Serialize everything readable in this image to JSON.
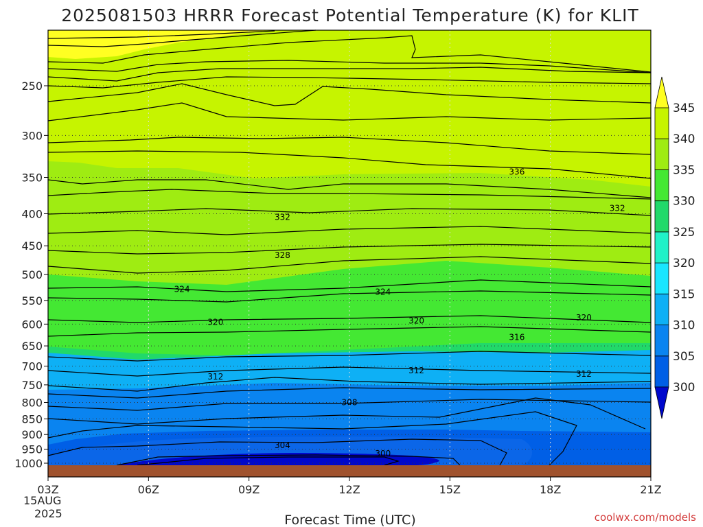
{
  "chart_data": {
    "type": "contour",
    "title": "2025081503 HRRR Forecast Potential Temperature (K) for KLIT",
    "xlabel": "Forecast Time (UTC)",
    "x_ticks": [
      "03Z",
      "06Z",
      "09Z",
      "12Z",
      "15Z",
      "18Z",
      "21Z"
    ],
    "x_date_label": [
      "15AUG",
      "2025"
    ],
    "y_ticks": [
      250,
      300,
      350,
      400,
      450,
      500,
      550,
      600,
      650,
      700,
      750,
      800,
      850,
      900,
      950,
      1000
    ],
    "y_range_hpa": [
      200,
      1000
    ],
    "y_axis_reversed": true,
    "grid": "dotted",
    "colorbar": {
      "ticks": [
        300,
        305,
        310,
        315,
        320,
        325,
        330,
        335,
        340,
        345
      ],
      "colors": [
        "#0008cc",
        "#005fe6",
        "#0a84f0",
        "#0eb0f5",
        "#19e6ff",
        "#20f2c8",
        "#21d96a",
        "#44e833",
        "#9fec12",
        "#c6f400",
        "#ffff22"
      ],
      "extend": "both"
    },
    "contour_labels": [
      {
        "value": "336",
        "time_hours": 14,
        "p": 343
      },
      {
        "value": "332",
        "time_hours": 7,
        "p": 405
      },
      {
        "value": "332",
        "time_hours": 17,
        "p": 392
      },
      {
        "value": "328",
        "time_hours": 7,
        "p": 466
      },
      {
        "value": "324",
        "time_hours": 4,
        "p": 528
      },
      {
        "value": "324",
        "time_hours": 10,
        "p": 533
      },
      {
        "value": "320",
        "time_hours": 5,
        "p": 596
      },
      {
        "value": "320",
        "time_hours": 11,
        "p": 593
      },
      {
        "value": "320",
        "time_hours": 16,
        "p": 586
      },
      {
        "value": "316",
        "time_hours": 14,
        "p": 630
      },
      {
        "value": "312",
        "time_hours": 5,
        "p": 728
      },
      {
        "value": "312",
        "time_hours": 11,
        "p": 712
      },
      {
        "value": "312",
        "time_hours": 16,
        "p": 721
      },
      {
        "value": "308",
        "time_hours": 9,
        "p": 800
      },
      {
        "value": "304",
        "time_hours": 7,
        "p": 936
      },
      {
        "value": "300",
        "time_hours": 10,
        "p": 965
      }
    ]
  },
  "credit": "coolwx.com/models"
}
